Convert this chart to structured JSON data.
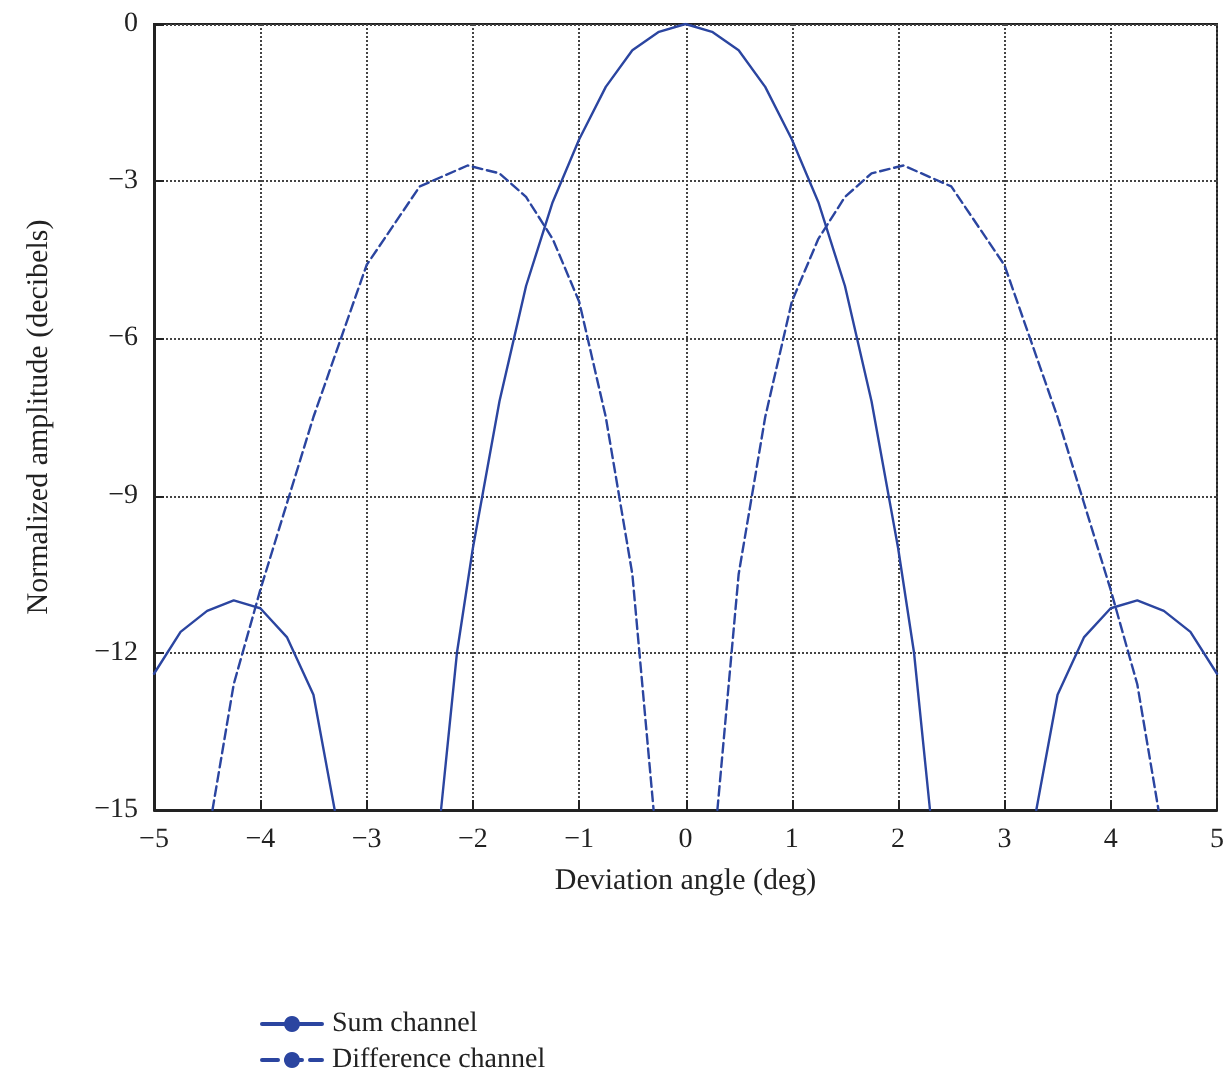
{
  "chart_data": {
    "type": "line",
    "xlabel": "Deviation angle (deg)",
    "ylabel": "Normalized amplitude (decibels)",
    "xlim": [
      -5,
      5
    ],
    "xticks": [
      -5,
      -4,
      -3,
      -2,
      -1,
      0,
      1,
      2,
      3,
      4,
      5
    ],
    "ylim": [
      -15,
      0
    ],
    "yticks": [
      -15,
      -12,
      -9,
      -6,
      -3,
      0
    ],
    "grid": true,
    "legend": "bottom left",
    "series": [
      {
        "name": "Sum channel",
        "color": "#2b45a0",
        "line_style": "solid",
        "x": [
          -5,
          -4.75,
          -4.5,
          -4.25,
          -4,
          -3.75,
          -3.5,
          -3.3,
          -2.8,
          -2.3,
          -2.15,
          -2,
          -1.75,
          -1.5,
          -1.25,
          -1,
          -0.75,
          -0.5,
          -0.25,
          0,
          0.25,
          0.5,
          0.75,
          1,
          1.25,
          1.5,
          1.75,
          2,
          2.15,
          2.3,
          2.8,
          3.3,
          3.5,
          3.75,
          4,
          4.25,
          4.5,
          4.75,
          5
        ],
        "values": [
          -12.4,
          -11.6,
          -11.2,
          -11,
          -11.15,
          -11.7,
          -12.8,
          -15,
          null,
          -15,
          -12,
          -10,
          -7.2,
          -5,
          -3.4,
          -2.2,
          -1.2,
          -0.5,
          -0.15,
          0,
          -0.15,
          -0.5,
          -1.2,
          -2.2,
          -3.4,
          -5,
          -7.2,
          -10,
          -12,
          -15,
          null,
          -15,
          -12.8,
          -11.7,
          -11.15,
          -11,
          -11.2,
          -11.6,
          -12.4
        ]
      },
      {
        "name": "Difference channel",
        "color": "#2b45a0",
        "line_style": "dashed",
        "x": [
          -4.45,
          -4.25,
          -4,
          -3.5,
          -3,
          -2.5,
          -2.05,
          -1.75,
          -1.5,
          -1.25,
          -1,
          -0.75,
          -0.5,
          -0.3,
          0,
          0.3,
          0.5,
          0.75,
          1,
          1.25,
          1.5,
          1.75,
          2.05,
          2.5,
          3,
          3.5,
          4,
          4.25,
          4.45
        ],
        "values": [
          -15,
          -12.6,
          -10.8,
          -7.5,
          -4.6,
          -3.1,
          -2.7,
          -2.85,
          -3.3,
          -4.1,
          -5.3,
          -7.5,
          -10.5,
          -15,
          null,
          -15,
          -10.5,
          -7.5,
          -5.3,
          -4.1,
          -3.3,
          -2.85,
          -2.7,
          -3.1,
          -4.6,
          -7.5,
          -10.8,
          -12.6,
          -15
        ]
      }
    ]
  }
}
